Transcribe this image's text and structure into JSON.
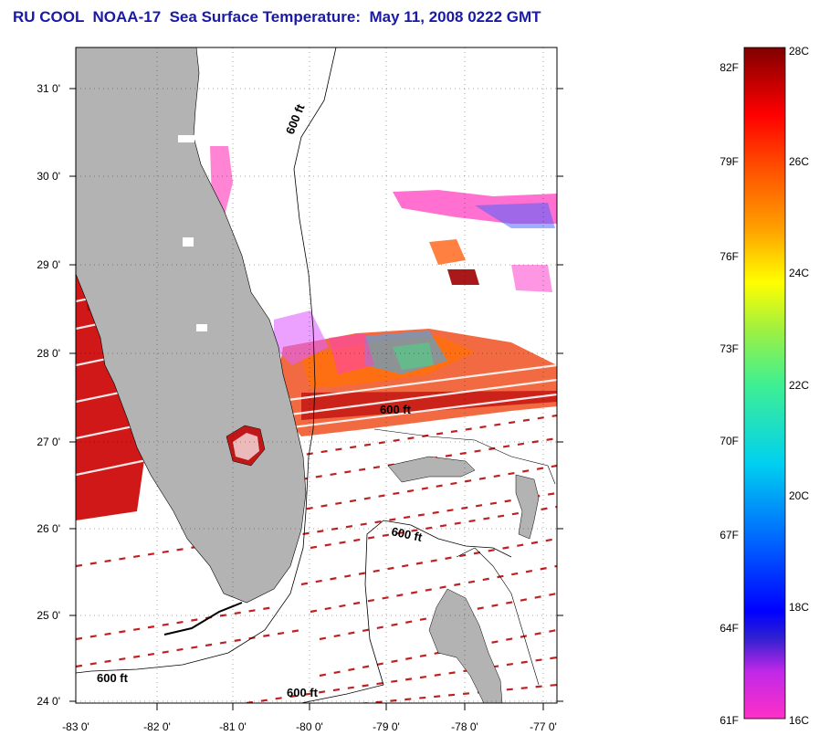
{
  "title": "RU COOL  NOAA-17  Sea Surface Temperature:  May 11, 2008 0222 GMT",
  "map": {
    "lon_ticks": [
      "-83 0'",
      "-82 0'",
      "-81 0'",
      "-80 0'",
      "-79 0'",
      "-78 0'",
      "-77 0'"
    ],
    "lat_ticks": [
      "31 0'",
      "30 0'",
      "29 0'",
      "28 0'",
      "27 0'",
      "26 0'",
      "25 0'",
      "24 0'"
    ],
    "contour_labels": [
      "600 ft",
      "600 ft",
      "600 ft",
      "600 ft",
      "600 ft"
    ],
    "colors": {
      "land": "#b3b3b3",
      "frame": "#000000",
      "title": "#1a1aa6"
    }
  },
  "colorbar": {
    "fahrenheit_labels": [
      "82F",
      "79F",
      "76F",
      "73F",
      "70F",
      "67F",
      "64F",
      "61F"
    ],
    "celsius_labels": [
      "28C",
      "26C",
      "24C",
      "22C",
      "20C",
      "18C",
      "16C"
    ],
    "range_c": [
      16,
      28
    ],
    "range_f": [
      61,
      82
    ]
  }
}
